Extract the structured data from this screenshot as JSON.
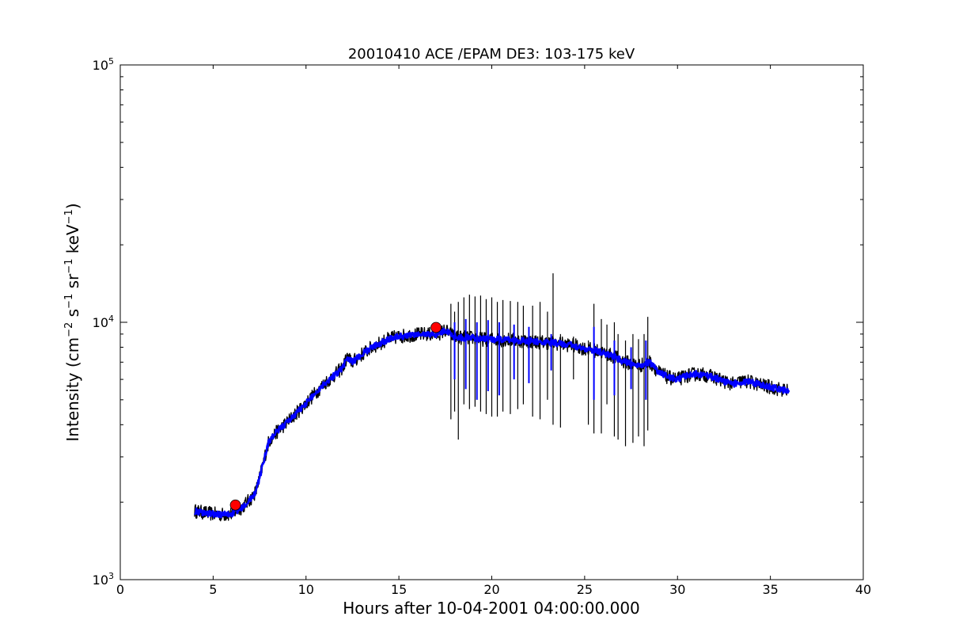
{
  "chart_data": {
    "type": "line",
    "title": "20010410 ACE /EPAM DE3: 103-175 keV",
    "xlabel": "Hours after 10-04-2001 04:00:00.000",
    "ylabel_parts": [
      "Intensity (cm",
      "−2",
      " s",
      "−1",
      " sr",
      "−1",
      " keV",
      "−1",
      ")"
    ],
    "xlim": [
      0,
      40
    ],
    "ylim": [
      1000,
      100000
    ],
    "yscale": "log",
    "grid": false,
    "x_ticks": [
      {
        "value": 0,
        "label": "0"
      },
      {
        "value": 5,
        "label": "5"
      },
      {
        "value": 10,
        "label": "10"
      },
      {
        "value": 15,
        "label": "15"
      },
      {
        "value": 20,
        "label": "20"
      },
      {
        "value": 25,
        "label": "25"
      },
      {
        "value": 30,
        "label": "30"
      },
      {
        "value": 35,
        "label": "35"
      },
      {
        "value": 40,
        "label": "40"
      }
    ],
    "y_ticks": [
      {
        "value": 1000,
        "base": "10",
        "exp": "3"
      },
      {
        "value": 10000,
        "base": "10",
        "exp": "4"
      },
      {
        "value": 100000,
        "base": "10",
        "exp": "5"
      }
    ],
    "series": [
      {
        "color": "#000000",
        "x": [
          4.0,
          4.5,
          5.0,
          5.5,
          6.0,
          6.5,
          7.0,
          7.3,
          7.6,
          7.8,
          8.0,
          8.5,
          9.0,
          9.5,
          10.0,
          10.5,
          11.0,
          11.5,
          12.0,
          12.2,
          12.5,
          13.0,
          13.5,
          14.0,
          14.5,
          15.0,
          15.5,
          16.0,
          16.5,
          17.0,
          17.5,
          18.0,
          18.5,
          19.0,
          19.5,
          20.0,
          20.5,
          21.0,
          21.5,
          22.0,
          22.5,
          23.0,
          23.5,
          24.0,
          24.5,
          25.0,
          25.5,
          26.0,
          26.5,
          27.0,
          27.5,
          28.0,
          28.5,
          29.0,
          29.5,
          30.0,
          30.5,
          31.0,
          31.5,
          32.0,
          32.5,
          33.0,
          33.5,
          34.0,
          34.5,
          35.0,
          35.5,
          36.0
        ],
        "y": [
          1850,
          1820,
          1800,
          1790,
          1800,
          1900,
          2050,
          2200,
          2650,
          3050,
          3450,
          3800,
          4100,
          4450,
          4850,
          5300,
          5800,
          6200,
          6700,
          7300,
          7000,
          7500,
          7950,
          8300,
          8650,
          8800,
          8900,
          8950,
          9000,
          8950,
          9300,
          8800,
          8700,
          8700,
          8600,
          8600,
          8550,
          8550,
          8500,
          8450,
          8400,
          8350,
          8300,
          8200,
          8100,
          7900,
          7800,
          7600,
          7400,
          7100,
          6900,
          6800,
          7000,
          6400,
          6100,
          6000,
          6200,
          6300,
          6250,
          6100,
          5900,
          5750,
          5900,
          5850,
          5700,
          5600,
          5500,
          5400
        ],
        "spikes": [
          {
            "x": 17.8,
            "min": 4200,
            "max": 11800
          },
          {
            "x": 18.0,
            "min": 4500,
            "max": 11000
          },
          {
            "x": 18.2,
            "min": 3500,
            "max": 12000
          },
          {
            "x": 18.5,
            "min": 4800,
            "max": 12500
          },
          {
            "x": 18.8,
            "min": 4600,
            "max": 12800
          },
          {
            "x": 19.1,
            "min": 4700,
            "max": 12600
          },
          {
            "x": 19.4,
            "min": 4500,
            "max": 12700
          },
          {
            "x": 19.7,
            "min": 4400,
            "max": 12300
          },
          {
            "x": 20.0,
            "min": 4300,
            "max": 12500
          },
          {
            "x": 20.3,
            "min": 4300,
            "max": 12000
          },
          {
            "x": 20.6,
            "min": 4500,
            "max": 12200
          },
          {
            "x": 21.0,
            "min": 4400,
            "max": 12100
          },
          {
            "x": 21.4,
            "min": 4600,
            "max": 12000
          },
          {
            "x": 21.7,
            "min": 4800,
            "max": 11600
          },
          {
            "x": 22.2,
            "min": 4300,
            "max": 11600
          },
          {
            "x": 22.6,
            "min": 4200,
            "max": 12000
          },
          {
            "x": 23.0,
            "min": 5000,
            "max": 11000
          },
          {
            "x": 23.3,
            "min": 4000,
            "max": 15500
          },
          {
            "x": 23.7,
            "min": 3900,
            "max": 9000
          },
          {
            "x": 24.4,
            "min": 6000,
            "max": 8800
          },
          {
            "x": 25.2,
            "min": 4000,
            "max": 8500
          },
          {
            "x": 25.5,
            "min": 3700,
            "max": 11800
          },
          {
            "x": 25.9,
            "min": 3700,
            "max": 10300
          },
          {
            "x": 26.2,
            "min": 4800,
            "max": 9800
          },
          {
            "x": 26.6,
            "min": 3600,
            "max": 10000
          },
          {
            "x": 26.8,
            "min": 3500,
            "max": 9000
          },
          {
            "x": 27.2,
            "min": 3300,
            "max": 8500
          },
          {
            "x": 27.6,
            "min": 3400,
            "max": 9000
          },
          {
            "x": 27.9,
            "min": 3600,
            "max": 8600
          },
          {
            "x": 28.2,
            "min": 3300,
            "max": 9000
          },
          {
            "x": 28.4,
            "min": 3800,
            "max": 10500
          }
        ]
      },
      {
        "color": "#0000ff",
        "x": [
          4.0,
          4.5,
          5.0,
          5.5,
          6.0,
          6.5,
          7.0,
          7.3,
          7.6,
          7.8,
          8.0,
          8.5,
          9.0,
          9.5,
          10.0,
          10.5,
          11.0,
          11.5,
          12.0,
          12.2,
          12.5,
          13.0,
          13.5,
          14.0,
          14.5,
          15.0,
          15.5,
          16.0,
          16.5,
          17.0,
          17.5,
          18.0,
          18.5,
          19.0,
          19.5,
          20.0,
          20.5,
          21.0,
          21.5,
          22.0,
          22.5,
          23.0,
          23.5,
          24.0,
          24.5,
          25.0,
          25.5,
          26.0,
          26.5,
          27.0,
          27.5,
          28.0,
          28.5,
          29.0,
          29.5,
          30.0,
          30.5,
          31.0,
          31.5,
          32.0,
          32.5,
          33.0,
          33.5,
          34.0,
          34.5,
          35.0,
          35.5,
          36.0
        ],
        "y": [
          1850,
          1820,
          1800,
          1790,
          1800,
          1900,
          2050,
          2200,
          2650,
          3050,
          3450,
          3800,
          4100,
          4450,
          4850,
          5300,
          5800,
          6200,
          6700,
          7300,
          7000,
          7500,
          7950,
          8300,
          8650,
          8800,
          8900,
          8950,
          9000,
          8950,
          9300,
          8800,
          8700,
          8700,
          8600,
          8600,
          8550,
          8550,
          8500,
          8450,
          8400,
          8350,
          8300,
          8200,
          8100,
          7900,
          7800,
          7600,
          7400,
          7100,
          6900,
          6800,
          7000,
          6400,
          6100,
          6000,
          6200,
          6300,
          6250,
          6100,
          5900,
          5750,
          5900,
          5850,
          5700,
          5600,
          5500,
          5400
        ],
        "spikes": [
          {
            "x": 18.0,
            "min": 6000,
            "max": 10000
          },
          {
            "x": 18.6,
            "min": 5500,
            "max": 10300
          },
          {
            "x": 19.2,
            "min": 5000,
            "max": 10000
          },
          {
            "x": 19.8,
            "min": 5400,
            "max": 10200
          },
          {
            "x": 20.4,
            "min": 5200,
            "max": 10000
          },
          {
            "x": 21.2,
            "min": 6000,
            "max": 9800
          },
          {
            "x": 22.0,
            "min": 5800,
            "max": 9600
          },
          {
            "x": 23.2,
            "min": 6500,
            "max": 9000
          },
          {
            "x": 25.5,
            "min": 5000,
            "max": 9600
          },
          {
            "x": 26.6,
            "min": 5200,
            "max": 8500
          },
          {
            "x": 27.5,
            "min": 5500,
            "max": 8000
          },
          {
            "x": 28.3,
            "min": 5000,
            "max": 8500
          }
        ]
      }
    ],
    "markers": [
      {
        "x": 6.2,
        "y": 1950,
        "color": "#ff0000"
      },
      {
        "x": 17.0,
        "y": 9550,
        "color": "#ff0000"
      }
    ]
  }
}
